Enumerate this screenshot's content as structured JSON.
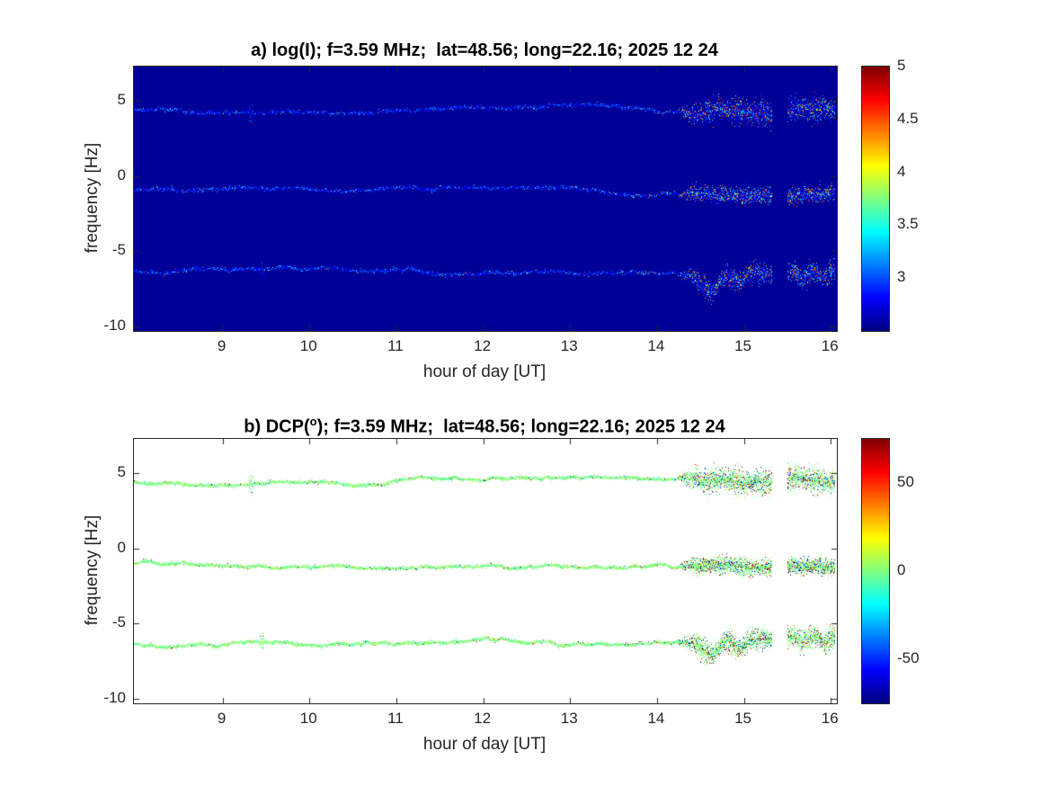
{
  "figure": {
    "background": "#ffffff",
    "axis_color": "#262626",
    "title_color": "#000000"
  },
  "chart_data": [
    {
      "type": "heatmap",
      "panel": "a",
      "title": "a) log(I); f=3.59 MHz;  lat=48.56; long=22.16; 2025 12 24",
      "xlabel": "hour of day [UT]",
      "ylabel": "frequency [Hz]",
      "xlim": [
        7.98,
        16.07
      ],
      "ylim": [
        -10.3,
        7.3
      ],
      "xticks": [
        9,
        10,
        11,
        12,
        13,
        14,
        15,
        16
      ],
      "yticks": [
        5,
        0,
        -5,
        -10
      ],
      "colormap": "jet",
      "clim": [
        2.5,
        5
      ],
      "background_value": 2.56,
      "colorbar_ticks": [
        5,
        4.5,
        4,
        3.5,
        3
      ],
      "traces": [
        {
          "name": "upper-spectral-line",
          "center_freq": 4.5
        },
        {
          "name": "middle-spectral-line",
          "center_freq": -1.0
        },
        {
          "name": "lower-spectral-line",
          "center_freq": -6.25
        }
      ],
      "segments": {
        "active_start": 14.25,
        "gap": [
          15.32,
          15.5
        ],
        "data_end": 16.05
      },
      "events": {
        "blip_upper": 9.33,
        "blip_lower": 9.45,
        "lower_dip_center": 14.62,
        "lower_dip_depth_hz": 1.05
      }
    },
    {
      "type": "heatmap",
      "panel": "b",
      "title_parts": {
        "pre": "b) DCP(",
        "sup": "o",
        "post": "); f=3.59 MHz;  lat=48.56; long=22.16; 2025 12 24"
      },
      "xlabel": "hour of day [UT]",
      "ylabel": "frequency [Hz]",
      "xlim": [
        7.98,
        16.07
      ],
      "ylim": [
        -10.3,
        7.3
      ],
      "xticks": [
        9,
        10,
        11,
        12,
        13,
        14,
        15,
        16
      ],
      "yticks": [
        5,
        0,
        -5,
        -10
      ],
      "colormap": "jet",
      "clim": [
        -75,
        75
      ],
      "background_value": null,
      "colorbar_ticks": [
        50,
        0,
        -50
      ],
      "traces": [
        {
          "name": "upper-spectral-line",
          "center_freq": 4.5
        },
        {
          "name": "middle-spectral-line",
          "center_freq": -1.0
        },
        {
          "name": "lower-spectral-line",
          "center_freq": -6.25
        }
      ],
      "segments": {
        "active_start": 14.25,
        "gap": [
          15.32,
          15.5
        ],
        "data_end": 16.05
      },
      "events": {
        "blip_upper": 9.33,
        "blip_lower": 9.45,
        "lower_dip_center": 14.62,
        "lower_dip_depth_hz": 1.05
      }
    }
  ]
}
